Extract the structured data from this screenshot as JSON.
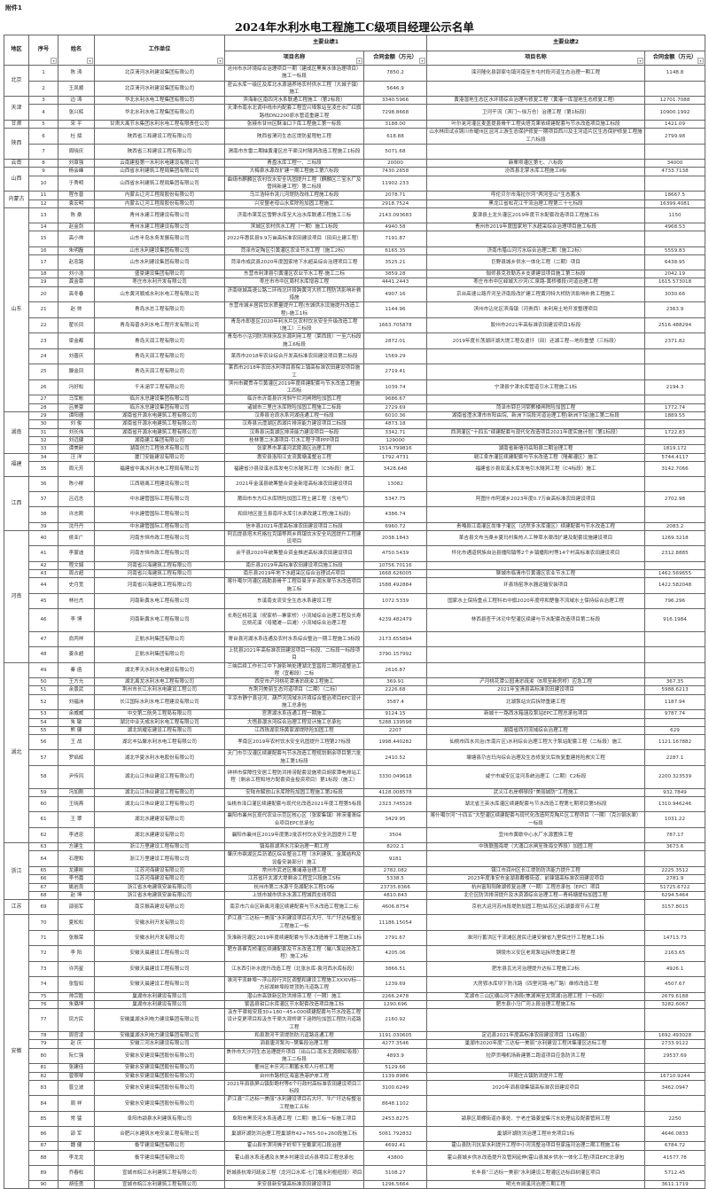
{
  "attachment_label": "附件1",
  "title": "2024年水利水电工程施工C级项目经理公示名单",
  "headers": {
    "region": "地区",
    "no": "序号",
    "name": "姓名",
    "company": "工作单位",
    "group1": "主要业绩1",
    "group2": "主要业绩2",
    "project_name": "项目名称",
    "amount": "合同金额（万元）"
  },
  "filter_icon": "dropdown-filter-icon",
  "regions": [
    {
      "name": "北京",
      "rows": [
        [
          "1",
          "陈 涛",
          "北京清河水利建设集团有限公司",
          "沧州市水环境综合治理项目一期（建成区黑臭水体治理项目）施工一标段",
          "7850.2",
          "滦河隆化县郭家屯镇河南至东屯村段河道生态治理一期工程",
          "1148.8"
        ],
        [
          "2",
          "王凤顺",
          "北京清河水利建设集团有限公司",
          "密云水库一级区及库北水源涵养地农村供水工程（大城子镇）施工",
          "5646.9",
          "",
          ""
        ]
      ]
    },
    {
      "name": "天津",
      "rows": [
        [
          "3",
          "边 涛",
          "华北水利水电工程集团有限公司",
          "滨海新区南四河水系联通工程施工（第2标段）",
          "3340.5966",
          "黄港湿地生态区水环境综合治理与修复工程（黄港一库湿地生态修复工程）",
          "12701.7088"
        ],
        [
          "4",
          "张兴辉",
          "华北水利水电工程集团有限公司",
          "天津市南水北调中线市内配套工程宜兴埠泵站至凌庄水厂红旗路线DN2200原水管道重建工程",
          "7298.8668",
          "卫河干流（淇门～徐万仓）治理工程（第1标段）",
          "10900.1992"
        ]
      ]
    },
    {
      "name": "甘肃",
      "rows": [
        [
          "5",
          "宋 平",
          "甘肃大禹节水集团水利水电工程有限责任公司",
          "张掖市甘州区酥油口下库工程施工第一标段",
          "3188.00",
          "叶尔羌河灌区麦盖提县骨干工程央塔克果依续建配套与节水改造项目施工标段",
          "1421.09"
        ]
      ]
    },
    {
      "name": "陕西",
      "rows": [
        [
          "6",
          "杜 斌",
          "陕西省三和建设工程有限公司",
          "陕西省渭河生态区堤防星程桩工程",
          "618.88",
          "山水林田试点铜川市耀州区沮河上游生态保护修复一期项目西川及主河道片区生态保护修复工程施工六标段",
          "2799.98"
        ],
        [
          "7",
          "周晓庆",
          "陕西省三和建设工程有限公司",
          "渭南市东雷二期抽黄灌区总干渠汉村隧洞改造工程施工1标段",
          "5071.68",
          "",
          ""
        ]
      ]
    },
    {
      "name": "云南",
      "rows": [
        [
          "8",
          "刘章强",
          "云南建投第一水利水电建设有限公司",
          "青盘水库工程一、二标段",
          "20000",
          "麻栗坝灌区第七、八标段",
          "34000"
        ]
      ]
    },
    {
      "name": "山西",
      "rows": [
        [
          "9",
          "杨会峰",
          "山西省水利建筑工程局集团有限公司",
          "大梅泉水源改扩建一期工程施工第六标段",
          "7430.2658",
          "汾西县北掌水库工程施工Ⅱ标",
          "4733.7138"
        ],
        [
          "10",
          "于秀明",
          "山西省水利建筑工程局集团有限公司",
          "曲靖市麒麟区农村饮水安全巩固提升工程（麒麟区三宝水厂及管网新建工程）第二标段",
          "11902.233",
          "",
          ""
        ]
      ]
    },
    {
      "name": "内蒙古",
      "rows": [
        [
          "11",
          "程东普",
          "内蒙古辽河工程局股份有限公司",
          "乌兰浩特市洮儿河堤防改线工程施工标段",
          "2078.71",
          "呼伦贝尔市海拉尔河“两河圣山”生态蓄水",
          "18667.5"
        ],
        [
          "12",
          "袁宏明",
          "内蒙古辽河工程局股份有限公司",
          "兴安盟老母山水库除险加固工程施工",
          "2918.7524",
          "黑龙江省松花江干流治理工程第三十七标段",
          "16399.4081"
        ]
      ]
    },
    {
      "name": "山东",
      "rows": [
        [
          "13",
          "陈 桑",
          "青州水建工程建设有限公司",
          "济南市莱芜区雪野水库至大冶水库联通工程施工三标",
          "2143.093683",
          "夏津县土龙头灌区2019年度节水配套改造项目工程施工标",
          "1150"
        ],
        [
          "14",
          "赵金剑",
          "青州水建工程建设有限公司",
          "滨城区农村供水工程（一期）施工1标段",
          "4940.58",
          "青州市2019年度国家地下水超采综合治理项目施工标段",
          "4968.53"
        ],
        [
          "15",
          "高小帅",
          "山东半岛水务发展有限公司",
          "2022年惠民县9.9万亩高标准农田建设项目（田间土建工程）",
          "7191.87",
          "",
          ""
        ],
        [
          "16",
          "朱明磊",
          "山东水利建设集团有限公司",
          "菏泽市定陶区引黄灌区农业节水工程（施工2标）",
          "6165.35",
          "济南市腊山河污水综合治理二期（施工2标）",
          "5559.83"
        ],
        [
          "17",
          "赵忠路",
          "山东水利建设集团有限公司",
          "菏泽市成武县2020年度国家地下水超采综合治理项目工程",
          "3525.21",
          "巨野县城乡供水一体化工程（二期）项目",
          "6438.95"
        ],
        [
          "18",
          "刘小浩",
          "盛豪建设集团有限公司",
          "东营市利津县引黄灌区农业节水工程-施工二标",
          "3859.28",
          "伽师县克孜勒苏乡支渠建设项目施工第三标段",
          "2042.19"
        ],
        [
          "19",
          "龚金章",
          "枣庄市水利开发有限公司",
          "枣庄市市中区周村水库增容工程",
          "4441.2443",
          "枣庄市市中区峄城大沙河(汇泉路-黄桥楼段)河道治理工程",
          "1615.573018"
        ],
        [
          "20",
          "高冬春",
          "山东黄河顺成水利水电工程有限公司",
          "济南绕城高速公路二环线北环段跨黄河大桥工程防洪影响补救措施",
          "4907.16",
          "京台高速公路齐河至济南段改扩建工程黄河特大桥防洪影响补救工程施工",
          "3030.66"
        ],
        [
          "21",
          "赵 帅",
          "青岛水总工程有限公司",
          "东营市城乡居民饮水质量提升工程(东城供水设施提升改造工程)-施工1标",
          "1144.96",
          "滨州市沾化区滨海镇（河贵西）未利用土地开发整理项目",
          "2363.9"
        ],
        [
          "22",
          "翟长凤",
          "青岛海晋水利水电工程开发有限公司",
          "青岛市即墨区2020年利水片区农村饮水安全升级改造工程（施工）三标段",
          "1663.705878",
          "胶州市2021年高标准农田建设项目1标段",
          "2516.488294"
        ],
        [
          "23",
          "梁金都",
          "青岛天润工程有限公司",
          "青岛市小沽河防洪排涝及水源利用工程（莱西段）一至六标段施工6标段",
          "2872.01",
          "2019年度长荡湖环湖大堤工程及退圩（田）还湖工程—地形重塑（三标段）",
          "2371.82"
        ],
        [
          "24",
          "刘善庆",
          "青岛天润工程有限公司",
          "莱西市2018年农业综合开发高标准农田建设项目第二标段",
          "1569.29",
          "",
          ""
        ],
        [
          "25",
          "滕金凤",
          "青岛天润工程有限公司",
          "莱西市2018年农田水利项目县院上镇高标准农田建设项目施工",
          "2719.41",
          "",
          ""
        ],
        [
          "26",
          "冯好松",
          "千禾涵宇工程有限公司",
          "滨州市藏贯寺引黄灌区2019年度续建配套与节水改造工程施工四标",
          "1039.74",
          "宁津县宁津水库管道引水工程施工1标",
          "2194.3"
        ],
        [
          "27",
          "马军帐",
          "临沂水总建设集团有限公司",
          "临沂市沂南县沂河斜午拦河闸除险加固工程",
          "9686.67",
          "",
          ""
        ],
        [
          "28",
          "吕美豪",
          "临沂水总建设集团有限公司",
          "诸城市三里庄水库除险加固工程施工二标段",
          "2729.69",
          "菏泽市郓巨河郓鄄楼闸除险加固工程",
          "1772.74"
        ]
      ]
    },
    {
      "name": "湖南",
      "rows": [
        [
          "29",
          "谭阳德",
          "湖南省开源水电建筑工程有限公司",
          "汉寿县沧浪水系河湖连通工程一标段",
          "6010.36",
          "湖南省澧水津市市阳由垸、新洲下垸段河道治理工程(新洲下垸)施工第二标段",
          "1889.55"
        ],
        [
          "30",
          "刘 俊",
          "湖南省开源水电建筑工程有限公司",
          "汉寿县沅澧湖区西湖片排涝能力建设项目二标段",
          "4873.18",
          "",
          ""
        ],
        [
          "31",
          "刘长伟",
          "湖南省开源水电建筑工程有限公司",
          "汉寿县沅南湖区排涝能力建设项目一标段",
          "3342.71",
          "西洞灌区“十四五”续建配套与现代化改造项目2021年度实施计划（第1标段）",
          "1722.83"
        ],
        [
          "32",
          "刘远健",
          "湖南建工集团有限公司",
          "桂林第二水源项目-引水工程子项PPP项目",
          "129000",
          "",
          ""
        ],
        [
          "33",
          "谭美龄",
          "湖南创力工程技术有限公司",
          "张家界市茅溪河武陵源区治理工程",
          "1514.799816",
          "湖南省新墙河岳阳县二期治理工程",
          "1819.172"
        ]
      ]
    },
    {
      "name": "福建",
      "rows": [
        [
          "34",
          "汪 洋",
          "厦门安能建设有限公司",
          "惠安县洛阳江支流黄塘溪整治工程",
          "1792.4731",
          "赣江阜东灌区续建配套与节水改造工程（隆都灌区）施工",
          "5744.4117"
        ],
        [
          "35",
          "周元芳",
          "福建省中禹水利水电工程局有限公司",
          "福建省沙县双溪水库发电引水隧洞工程（C3标段）施工",
          "3428.648",
          "福建省沙县双溪水库发电引水隧洞工程（C4标段）施工",
          "3142.7066"
        ]
      ]
    },
    {
      "name": "江西",
      "rows": [
        [
          "36",
          "陈小柳",
          "江西赣禹工程建设有限公司",
          "2021年金溪县统筹整合资金新增高标准农田建设项目",
          "13082",
          "",
          ""
        ],
        [
          "37",
          "吕远志",
          "中水建管国际工程有限公司",
          "莆田市东方红水库除险加固工程土建工程（含电气）",
          "5347.75",
          "阿图什市阿湖乡2023年度0.7万亩高标准农田建设项目",
          "2702.98"
        ],
        [
          "38",
          "许志刚",
          "中水建管国际工程有限公司",
          "和田地区墨玉县南坪水库引水渠改建工程(施工标段)",
          "4386.74",
          "",
          ""
        ],
        [
          "39",
          "沈丹丹",
          "中水建管国际工程有限公司",
          "信丰县2021年度高标准农田建设项目三标段",
          "6960.72",
          "贵嘎县江南灌区尚堆子灌区（达然多水库灌区）续建配套与节水改造工程",
          "2083.2"
        ]
      ]
    },
    {
      "name": "河南",
      "rows": [
        [
          "40",
          "侯亚广",
          "河南东恒市政工程有限公司",
          "阿瓦提县塔木托格拉克镇等两乡两镇饮水安全巩固提升工程建设项目",
          "2038.1843",
          "革吉县文布当桑乡夏玛村柴热人工种草水渠改扩建及配套设施建设项目",
          "1269.3218"
        ],
        [
          "41",
          "李蒙迪",
          "河南东恒市政工程有限公司",
          "余干县2020年统筹整合资金推进高标准农田建设项目",
          "4750.5439",
          "怀化市通道侗族自治县播阳镇等2个乡镇播阳村等14个村高标准农田建设项目",
          "2312.8885"
        ],
        [
          "42",
          "程文娟",
          "河南省兴海建筑工程有限公司",
          "南乐县2019年高标准农田建设项目施工标段",
          "10756.70116",
          "",
          ""
        ],
        [
          "43",
          "周占超",
          "河南省兴海建筑工程有限公司",
          "南乐县2019年地下水超采区综合治理试点项目",
          "1668.626005",
          "聊城市临清市引黄灌区农业节水工程",
          "1462.569655"
        ],
        [
          "44",
          "史月宽",
          "河南省兴海建筑工程有限公司",
          "喀什噶尔河灌区疏勒县骨干工程亚曼牙乡调水渠节水改造项目施工标",
          "1588.492884",
          "环县场窑净水器运输安装项目",
          "1422.582048"
        ],
        [
          "45",
          "林社杰",
          "河南新黄水电工程有限公司",
          "东溪南支流安全生态水系建设工程",
          "1072.5339",
          "国家水土保持重点工程科右中旗2020年度呼和楚鲁不流域水土保持综合治理工程",
          "796.296"
        ],
        [
          "46",
          "李 博",
          "河南新黄水电工程有限公司",
          "长寿区桃花溪（祝家桥—寨家桥）小流域综合治理工程及长寿区桃花溪（母猪滩—后滩）小流域综合治理工程",
          "4239.482479",
          "林西县查干沐沦中型灌区续建与节水配套改造项目第二标段",
          "916.1984"
        ],
        [
          "47",
          "俞丙祥",
          "正航水利集团有限公司",
          "寄台县河湖水系连通及农村水系综合整治一期工程施工3标段",
          "2173.655894",
          "",
          ""
        ],
        [
          "48",
          "姜永超",
          "正航水利集团有限公司",
          "上犹县2021年高标准农田建设项目一标段、二标段一标段项目",
          "3790.157992",
          "",
          ""
        ]
      ]
    },
    {
      "name": "湖北",
      "rows": [
        [
          "49",
          "秦 函",
          "湖北孝天水利水电建设有限公司",
          "三峡后续工作长江中下游影响处理湖北宜昌段二期河道整治工程（宜都段）二标",
          "2616.87",
          "",
          ""
        ],
        [
          "50",
          "王方允",
          "湖北禹龙水利水电工程有限公司",
          "西安市浐河桃花潭清淤疏浚工程施工",
          "369.91",
          "浐河桃花潭公园清淤疏浚（B坝至新房桥）应急工程",
          "367.35"
        ],
        [
          "51",
          "余景武",
          "荆州市长江水利水电建设工程公司",
          "东荆河美丽生态河道项目（二期）（二标）",
          "2226.68",
          "2021年宝清县高标准农田建设项目",
          "5988.6213"
        ],
        [
          "52",
          "刘福洲",
          "长江国际水利水电工程建设有限公司",
          "平凉市静宁县泾河、葫芦河流域水环境综合整治项目EPC设计施工总承包",
          "3587.4",
          "北湖泵站灾后拆除重建工程",
          "1187.94"
        ],
        [
          "53",
          "余威威",
          "中交第二航务工程局有限公司",
          "官莲湖水系连通工程一期施工",
          "9124.15",
          "新城十一路西水箱涵及泵站EPC工程总承包项目",
          "9787.74"
        ],
        [
          "54",
          "朱 敏",
          "湖北中业天成水利水电工程有限公司",
          "大悟县澴水河综合治理工程设计施工总承包",
          "5288.139598",
          "",
          ""
        ],
        [
          "55",
          "熊 健",
          "湖北凯耀宏建设工程有限公司",
          "江西珠湖农场黄家湖堤除险加固工程",
          "2207",
          "湖南省西河流域综合治理工程",
          "629"
        ],
        [
          "56",
          "王 战",
          "湖北丰弘聚水利水电工程有限公司",
          "孝南区2019年农村饮水安全巩固提升工程第27标段",
          "1998.440282",
          "仙桃市四水共治(东南片区)水利综合治理工程大子泵站配套工程（二标段）施工",
          "1121.167882"
        ],
        [
          "57",
          "罗焰辉",
          "湖北华夏水利水电股份有限公司",
          "天门市引汉灌区续建配套与节水改造工程规划剩余项目第六批施工第1标段",
          "2410.52",
          "壤塘县尕吉玛沟综合治理及生态修复灾后恢复重建抢险救灾工程",
          "2287.1"
        ],
        [
          "58",
          "尹传风",
          "湖北山江伟业建设工程有限公司",
          "钟祥市保障性安居工程防洪排涝配套设施项目胡家潭电排站工程（剩余工程和地方配套资金投资项目）第1标段（施工）",
          "3330.049618",
          "咸宁市咸安区淦河系统治理工（二期）C2标段",
          "2200.323539"
        ],
        [
          "59",
          "冯加刚",
          "湖北山江伟业建设工程有限公司",
          "安陆市解放山水库除险加固工程施工第2标段",
          "4128.008578",
          "武义江右岸桐琴段“美丽城防”工程施工",
          "932.7849"
        ],
        [
          "60",
          "王晓燕",
          "湖北山江伟业建设工程有限公司",
          "仙桃市泽口灌区续建配套与现代化改造2021年度工程第5标段",
          "2323.745528",
          "湖北省王英水库灌区续建配套与节水改造工程第七期项目第5标段",
          "1310.946246"
        ],
        [
          "61",
          "王 翠",
          "湖北水建建设有限公司",
          "襄阳市襄州区现代农业示范区核心区（张家集镇）排涝灌溉综合项目EPC总承包",
          "3429.95",
          "喀什噶尔河“十四五”大型灌区续建配套与现代化改造阿克陶片区工程项目（一期）（克沙钢水渠）一标段",
          "1031.22"
        ],
        [
          "62",
          "李进忠",
          "湖北水建建设有限公司",
          "襄阳市襄州区2019年度第2批农村饮水安全巩固提升工程",
          "3504",
          "宜州市黄歇中心水厂水源置换工程",
          "787.17"
        ]
      ]
    },
    {
      "name": "浙江",
      "rows": [
        [
          "63",
          "方建生",
          "浙江万里建设工程有限公司",
          "镇海县湖滨水污染治理一期工程",
          "8202.1",
          "中珠联围海堤（大涌口水闸至珠海交界段）加固工程",
          "3673.6"
        ],
        [
          "64",
          "石理和",
          "浙江万里建设工程有限公司",
          "肇庆市鼎湖区后沥涌区综合整治工程（水利建筑、金属结构及设备安装部分）施工",
          "9181",
          "",
          ""
        ],
        [
          "65",
          "龙建彬",
          "江苏河海建设有限公司",
          "常州市武进区雅浦港治理工程",
          "2782.082",
          "镇江市润州区长江堤防防洪能力提升工程",
          "2225.3512"
        ],
        [
          "66",
          "李书嘉",
          "江苏河海建设有限公司",
          "江苏省环太湖大堤剩余工程宜兴段施工5标",
          "5338.5",
          "2023年度淮安市金湖县戴楼街道、前锋镇高标准农田建设项目",
          "2781.9"
        ],
        [
          "67",
          "姚岩良",
          "浙江省水电建筑安装有限公司",
          "杭州市第二水源千岛湖配水工程10标",
          "23735.8366",
          "杭州富阳阳陂湖修复治理（一期）工程总承包（EPC）项目",
          "51725.6722"
        ],
        [
          "68",
          "赵 坤",
          "浙江省水电建筑安装有限公司",
          "上饶市城市供水水源工程城西支线项目",
          "4810.843",
          "北仑区防洪排涝提升及水资源综合治理工程—青峙塘提标加固工程",
          "6294.5464"
        ]
      ]
    },
    {
      "name": "江苏",
      "rows": [
        [
          "69",
          "邵丽军",
          "南京振高建设有限公司",
          "南京市六合区新禹河灌区续建配套与节水改造工程施工二标",
          "4606.8754",
          "京杭大运河苏州段堤防加固工程[姑苏区]石湖景观节点工程",
          "3157.8015"
        ]
      ]
    },
    {
      "name": "安徽",
      "rows": [
        [
          "70",
          "夏松松",
          "安徽水利开发有限公司",
          "庐江县“三达标一美丽”水利建设项目石大圩、牛广圩达标整治工程施工一标",
          "11186.15054",
          "",
          ""
        ],
        [
          "71",
          "张振荣",
          "安徽水利开发有限公司",
          "茨淮新河灌区2019年度续建配套与节水改造骨干工程施工1标",
          "2791.67",
          "淮河行蓄洪区干流滩区居民迁建安徽省九里保庄圩工程施工1标",
          "14713.73"
        ],
        [
          "72",
          "李 阳",
          "安徽天晨建设工程有限公司",
          "肥东县蔡克桥灌区续建配套及节水改造工程（撮八泵站技改工程）施工2标",
          "4205.06",
          "铜陵市义安区老观泵站拆除重建工程",
          "2163.65"
        ],
        [
          "73",
          "许丙星",
          "安徽天晨建设工程有限公司",
          "江水西引补水提升改造工程（北张水库-袁河西水库标段）",
          "3866.51",
          "肥东县瓦光河治理提升达标工程施工2标",
          "4926.1"
        ],
        [
          "74",
          "张智如",
          "安徽天晨建设工程有限公司",
          "淮河干流蚌埠～浮山段行洪区调整和建设工程施工XXXIV标—方邱湖蚌埠段堤顶防汛道路工程",
          "1239.69",
          "大房郢水库坝下防汛路（四里河路-电厂路）维修改造工程",
          "4507.67"
        ],
        [
          "75",
          "帅宗胜",
          "巢湖市水利建设有限公司",
          "潜山市高铁新区防洪排涝工程（一期）施工",
          "2266.2478",
          "芜湖市三山区横山河下游段(焦湖闸至龙窝湖)治理工程（一标段）",
          "2679.6188"
        ],
        [
          "76",
          "朱璐坤",
          "巢湖市水利建设有限公司",
          "繁昌县钳口水库灌区节水配套改造项目施工标",
          "1290.696",
          "肥东县小马厂河上段治理工程施工标",
          "3282.6067"
        ],
        [
          "77",
          "凤方民",
          "安徽巢湖水利电力建设集团有限公司",
          "汲东干渠裕安段30+180~45+000续建配套与节水改造工程设计变更项目和汲东干渠大观桥渠下涵除险加固工程防汛道路工程",
          "2160.92",
          "",
          ""
        ],
        [
          "78",
          "周官凌",
          "安徽巢湖水利电力建设集团有限公司",
          "和县滁河干流堤防防汛道路连通工程",
          "1191.030605",
          "定远县2021年度高标准农田建设项目（14标段）",
          "1692.493028"
        ],
        [
          "79",
          "赵 庆",
          "安徽三河水利建设有限公司",
          "泗县唐河泵沟~樊集段治理工程",
          "4277.3546",
          "巢湖市2020年度“三达标一美丽”水利建设工程沐集灌区达标工程",
          "2733.9122"
        ],
        [
          "80",
          "阮仁强",
          "安徽水安建设集团股份有限公司",
          "焦作市大沙河生态治理提升项目（出山口-南水北调倒虹吸段）施工二标段",
          "4893.9",
          "拉萨贡嘎机场新建第二跑道项目应急防洪工程",
          "29537.69"
        ],
        [
          "81",
          "张建佳",
          "安徽水安建设集团股份有限公司",
          "衢州区丰乐河三期蓄水坝人行桥工程",
          "5129.66",
          "",
          ""
        ],
        [
          "82",
          "曾照琴",
          "安徽水安建设集团股份有限公司",
          "台州市路桥区海富渔港护岸工程",
          "1139.8986",
          "环周庄古镇防洪提升工程",
          "16710.9244"
        ],
        [
          "83",
          "晋立波",
          "安徽水安建设集团股份有限公司",
          "2021年泗县屏山镇彭鲍村等6个行政村高标准农田建设项目三标段",
          "3100.6249",
          "2020年泗县墩集镇高标准农田建设项目",
          "3462.0947"
        ],
        [
          "84",
          "周 祥",
          "安徽水安建设集团股份有限公司",
          "庐江县“三达标一美丽”水利建设项目石大圩、牛广圩达标整治工程施工五标",
          "8648.1102",
          "",
          ""
        ],
        [
          "85",
          "常 猛",
          "阜阳市颍泉水利建筑有限公司",
          "阜阳市黑茨河水系连通工程（二期）施工标一标施工项目",
          "2453.8275",
          "颍泉区周棚街道办事处、宁老庄镇姜堂集污水处理站及配套管网工程",
          "2250"
        ],
        [
          "86",
          "邵 军",
          "合肥兴水建筑水电安装工程有限公司",
          "巢湖环湖防洪治理工程巢湖市42+765-50+260段施工标",
          "5061.792832",
          "巢湖环湖防洪治理工程补充项目1标",
          "4646.0833"
        ],
        [
          "87",
          "魏 健",
          "衡宇建设集团有限公司",
          "霍山县东淠河佛子岭坝下至戴家河口段治理",
          "4692.41",
          "霍山县防汛抗旱水利提升工程中小河流整治项目但家庙河治理二期工程施工标",
          "6784.72"
        ],
        [
          "88",
          "李龙龙",
          "衡宇建设集团有限公司",
          "霍山县水系连通及水美乡村建设试点县项目工程总承包",
          "43800",
          "霍山县城乡供水改造提升及管网延伸(霍山县城乡供水一体化工程)项目EPC总承包",
          "41577.78"
        ],
        [
          "89",
          "乔春松",
          "宣城市皖江水利建筑工程有限公司",
          "舒城县杭埠河疏浚工程（龙河口水库-七门堰水利枢纽段）项目",
          "3108.27",
          "长丰县“三达标一美丽”水利建设工程灌区达标四树灌区项目",
          "5712.45"
        ],
        [
          "90",
          "胡佳勇",
          "宣城市皖江水利建筑工程有限公司",
          "来安县新安镇高标准农田建设项目",
          "1296.5664",
          "明光市涧溪河治理三期工程",
          "3611.1719"
        ]
      ]
    }
  ]
}
